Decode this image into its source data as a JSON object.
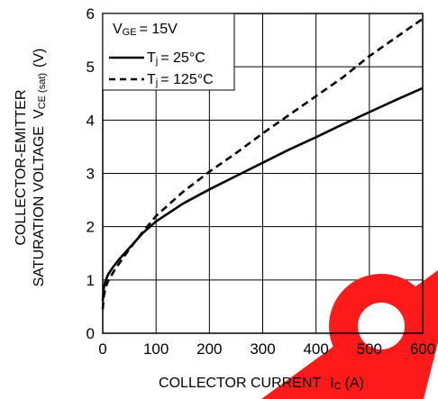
{
  "chart_data": {
    "type": "line",
    "xlabel_main": "COLLECTOR CURRENT",
    "xlabel_sym": "I",
    "xlabel_sub": "C",
    "xlabel_unit": "(A)",
    "ylabel_line1": "COLLECTOR-EMITTER",
    "ylabel_line2_main": "SATURATION VOLTAGE",
    "ylabel_line2_sym": "V",
    "ylabel_line2_sub": "CE (sat)",
    "ylabel_line2_unit": "(V)",
    "xlim": [
      0,
      600
    ],
    "ylim": [
      0,
      6
    ],
    "x_ticks": [
      "0",
      "100",
      "200",
      "300",
      "400",
      "500",
      "600"
    ],
    "y_ticks": [
      "0",
      "1",
      "2",
      "3",
      "4",
      "5",
      "6"
    ],
    "grid": true,
    "legend": {
      "position": "top-left",
      "condition_sym": "V",
      "condition_sub": "GE",
      "condition_value": "= 15V",
      "entries": [
        {
          "sym": "T",
          "sub": "j",
          "value": "= 25°C",
          "style": "solid"
        },
        {
          "sym": "T",
          "sub": "j",
          "value": "= 125°C",
          "style": "dashed"
        }
      ]
    },
    "series": [
      {
        "name": "Tj = 25°C",
        "style": "solid",
        "x": [
          0,
          2,
          5,
          10,
          20,
          30,
          50,
          75,
          100,
          150,
          200,
          250,
          300,
          350,
          400,
          450,
          500,
          550,
          600
        ],
        "y": [
          0.6,
          0.85,
          0.98,
          1.1,
          1.25,
          1.38,
          1.6,
          1.88,
          2.1,
          2.43,
          2.7,
          2.95,
          3.2,
          3.45,
          3.68,
          3.92,
          4.15,
          4.38,
          4.6
        ]
      },
      {
        "name": "Tj = 125°C",
        "style": "dashed",
        "x": [
          0,
          2,
          5,
          10,
          20,
          30,
          50,
          75,
          100,
          150,
          200,
          250,
          300,
          350,
          400,
          450,
          500,
          550,
          600
        ],
        "y": [
          0.45,
          0.7,
          0.85,
          0.98,
          1.15,
          1.3,
          1.58,
          1.9,
          2.2,
          2.65,
          3.03,
          3.38,
          3.75,
          4.1,
          4.45,
          4.8,
          5.2,
          5.55,
          5.9
        ]
      }
    ]
  },
  "watermark": {
    "color": "#ff1a1a"
  }
}
